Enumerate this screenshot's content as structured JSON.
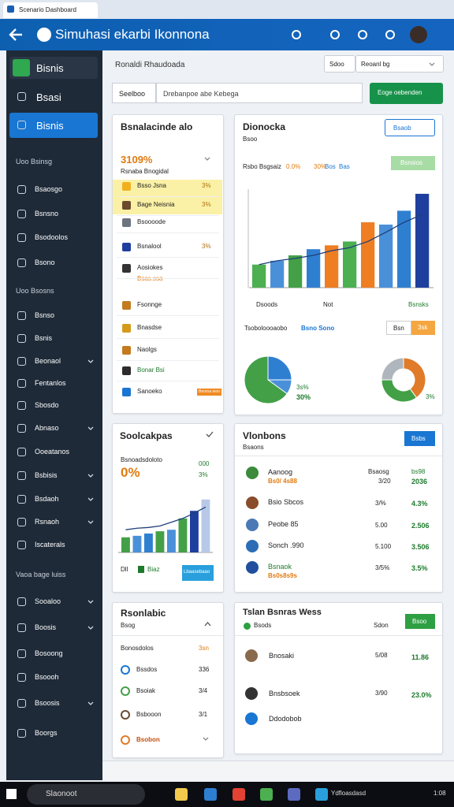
{
  "browser": {
    "tab": "Scenario Dashboard"
  },
  "header": {
    "title": "Simuhasi ekarbi Ikonnona"
  },
  "sidebar": {
    "items": [
      {
        "label": "Bisnis"
      },
      {
        "label": "Bsasi"
      },
      {
        "label": "Bisnis"
      },
      {
        "label": "Uoo Bsinsg",
        "section": true
      },
      {
        "label": "Bsaosgo"
      },
      {
        "label": "Bsnsno"
      },
      {
        "label": "Bsodoolos"
      },
      {
        "label": "Bsono"
      },
      {
        "label": "Uoo Bsosns",
        "section": true
      },
      {
        "label": "Bsnso"
      },
      {
        "label": "Bsnis"
      },
      {
        "label": "Beonaol",
        "submenu": true
      },
      {
        "label": "Fentanlos"
      },
      {
        "label": "Sbosdo"
      },
      {
        "label": "Abnaso",
        "submenu": true
      },
      {
        "label": "Ooeatanos"
      },
      {
        "label": "Bsbisis",
        "submenu": true
      },
      {
        "label": "Bsdaoh",
        "submenu": true
      },
      {
        "label": "Rsnaoh",
        "submenu": true
      },
      {
        "label": "Iscaterals"
      },
      {
        "label": "Vaoa bage luiss",
        "section": true
      },
      {
        "label": "Sooaloo",
        "submenu": true
      },
      {
        "label": "Boosis",
        "submenu": true
      },
      {
        "label": "Bosoong"
      },
      {
        "label": "Bsoooh"
      },
      {
        "label": "Bsoosis",
        "submenu": true
      },
      {
        "label": "Boorgs"
      }
    ]
  },
  "filters": {
    "label": "Ronaldi Rhaudoada",
    "select_a": "Sdoo",
    "select_b": "Reoanl bg"
  },
  "search": {
    "label": "Seelboo",
    "placeholder": "Drebanpoe abe Kebega",
    "button": "Eoge oebenden"
  },
  "card_a": {
    "title": "Bsnalacinde alo",
    "stat": "3109%",
    "stat_label": "Rsnaba Bnogidal",
    "rows": [
      [
        "Bsso Jsna",
        "3%"
      ],
      [
        "Bage Neisnia",
        "3%"
      ],
      [
        "Bsoooode"
      ],
      [
        "Bsnalool",
        "3%"
      ],
      [
        "Aosiokes",
        "Bsas.ssa"
      ],
      [
        "Fsonnge"
      ],
      [
        "Bnasdse"
      ],
      [
        "Naolgs"
      ],
      [
        "Bonar Bsi"
      ],
      [
        "Sanoeko",
        "Beoroa ieoo"
      ]
    ]
  },
  "card_b": {
    "title": "Dionocka",
    "subtitle": "Bsoo",
    "button": "Bsaob",
    "legend": [
      "Rsbo Bsgsaiz",
      "0.0%",
      "30%",
      "Bos",
      "Bas"
    ],
    "pill": "Bsnsios",
    "chart": {
      "type": "bar",
      "values": [
        30,
        35,
        42,
        50,
        55,
        60,
        85,
        82,
        100,
        122
      ],
      "colors": [
        "#4caf50",
        "#4a90d9",
        "#43a047",
        "#2f7fd1",
        "#ef7d22",
        "#4caf50",
        "#ef7d22",
        "#4a90d9",
        "#2f7fd1",
        "#1f3f9e"
      ],
      "ylim": [
        0,
        125
      ],
      "line": {
        "color": "#1f3f7a",
        "values": [
          30,
          35,
          38,
          42,
          48,
          52,
          60,
          72,
          85,
          95
        ]
      }
    },
    "x_labels": [
      "Dsoods",
      "Not",
      "Bsnsks"
    ],
    "footer_label": "Tsoboloooaobo",
    "footer_link": "Bsno Sono",
    "btn_a": "Bsn",
    "btn_b": "3sk",
    "pie": {
      "type": "pie",
      "values": [
        25,
        10,
        65
      ],
      "colors": [
        "#2f7fd1",
        "#4a90d9",
        "#43a047"
      ]
    },
    "pie_labels": [
      "3s%",
      "30%"
    ],
    "donut": {
      "type": "pie",
      "values": [
        40,
        35,
        25
      ],
      "colors": [
        "#e07b2a",
        "#43a047",
        "#b0b6bd"
      ]
    },
    "donut_label": "3%"
  },
  "card_c": {
    "title": "Soolcakpas",
    "label": "Bsnoadsdoloto",
    "stat": "0%",
    "side": [
      "000",
      "3%"
    ],
    "chart": {
      "type": "bar",
      "values": [
        20,
        22,
        25,
        28,
        30,
        45,
        55,
        70
      ],
      "colors": [
        "#43a047",
        "#4a90d9",
        "#2f7fd1",
        "#43a047",
        "#4a90d9",
        "#43a047",
        "#1f3f9e",
        "#b8c8e8"
      ],
      "ylim": [
        0,
        75
      ],
      "line": {
        "color": "#1f3f7a",
        "values": [
          30,
          32,
          33,
          35,
          40,
          45,
          52,
          60
        ]
      }
    },
    "legend": [
      "Dll",
      "Biaz"
    ],
    "button": "Lbaasebaao"
  },
  "card_d": {
    "title": "Vlonbons",
    "subtitle": "Bsaons",
    "button": "Bsbs",
    "rows": [
      {
        "name": "Aanoog",
        "sub": "Bs0/ 4s88",
        "mid": "Bsaosg",
        "mid2": "3/20",
        "right": "bs98",
        "right2": "2036"
      },
      {
        "name": "Bsio Sbcos",
        "mid": "3/%",
        "right": "4.3%"
      },
      {
        "name": "Peobe 85",
        "mid": "5.00",
        "right": "2.506"
      },
      {
        "name": "Sonch .990",
        "mid": "5.100",
        "right": "3.506"
      },
      {
        "name": "Bsnaok",
        "sub": "Bs0s8s9s",
        "mid": "3/5%",
        "right": "3.5%"
      }
    ]
  },
  "card_e": {
    "title": "Rsonlabic",
    "subtitle": "Bsog",
    "rows": [
      [
        "Bonosdolos",
        "3sn"
      ],
      [
        "Bssdos",
        "336"
      ],
      [
        "Bsoiak",
        "3/4"
      ],
      [
        "Bsbooon",
        "3/1"
      ],
      [
        "Bsobon"
      ]
    ]
  },
  "card_f": {
    "title": "Tslan Bsnras Wess",
    "side": "Sdon",
    "button": "Bsoo",
    "badge": "Bsods",
    "rows": [
      [
        "Bnosaki",
        "5/08",
        "11.86"
      ],
      [
        "Bnsbsoek",
        "3/90",
        "23.0%"
      ],
      [
        "Ddodobob"
      ]
    ]
  },
  "taskbar": {
    "search": "Slaonoot",
    "app": "Ydfloasdasd",
    "time": "1:08"
  }
}
